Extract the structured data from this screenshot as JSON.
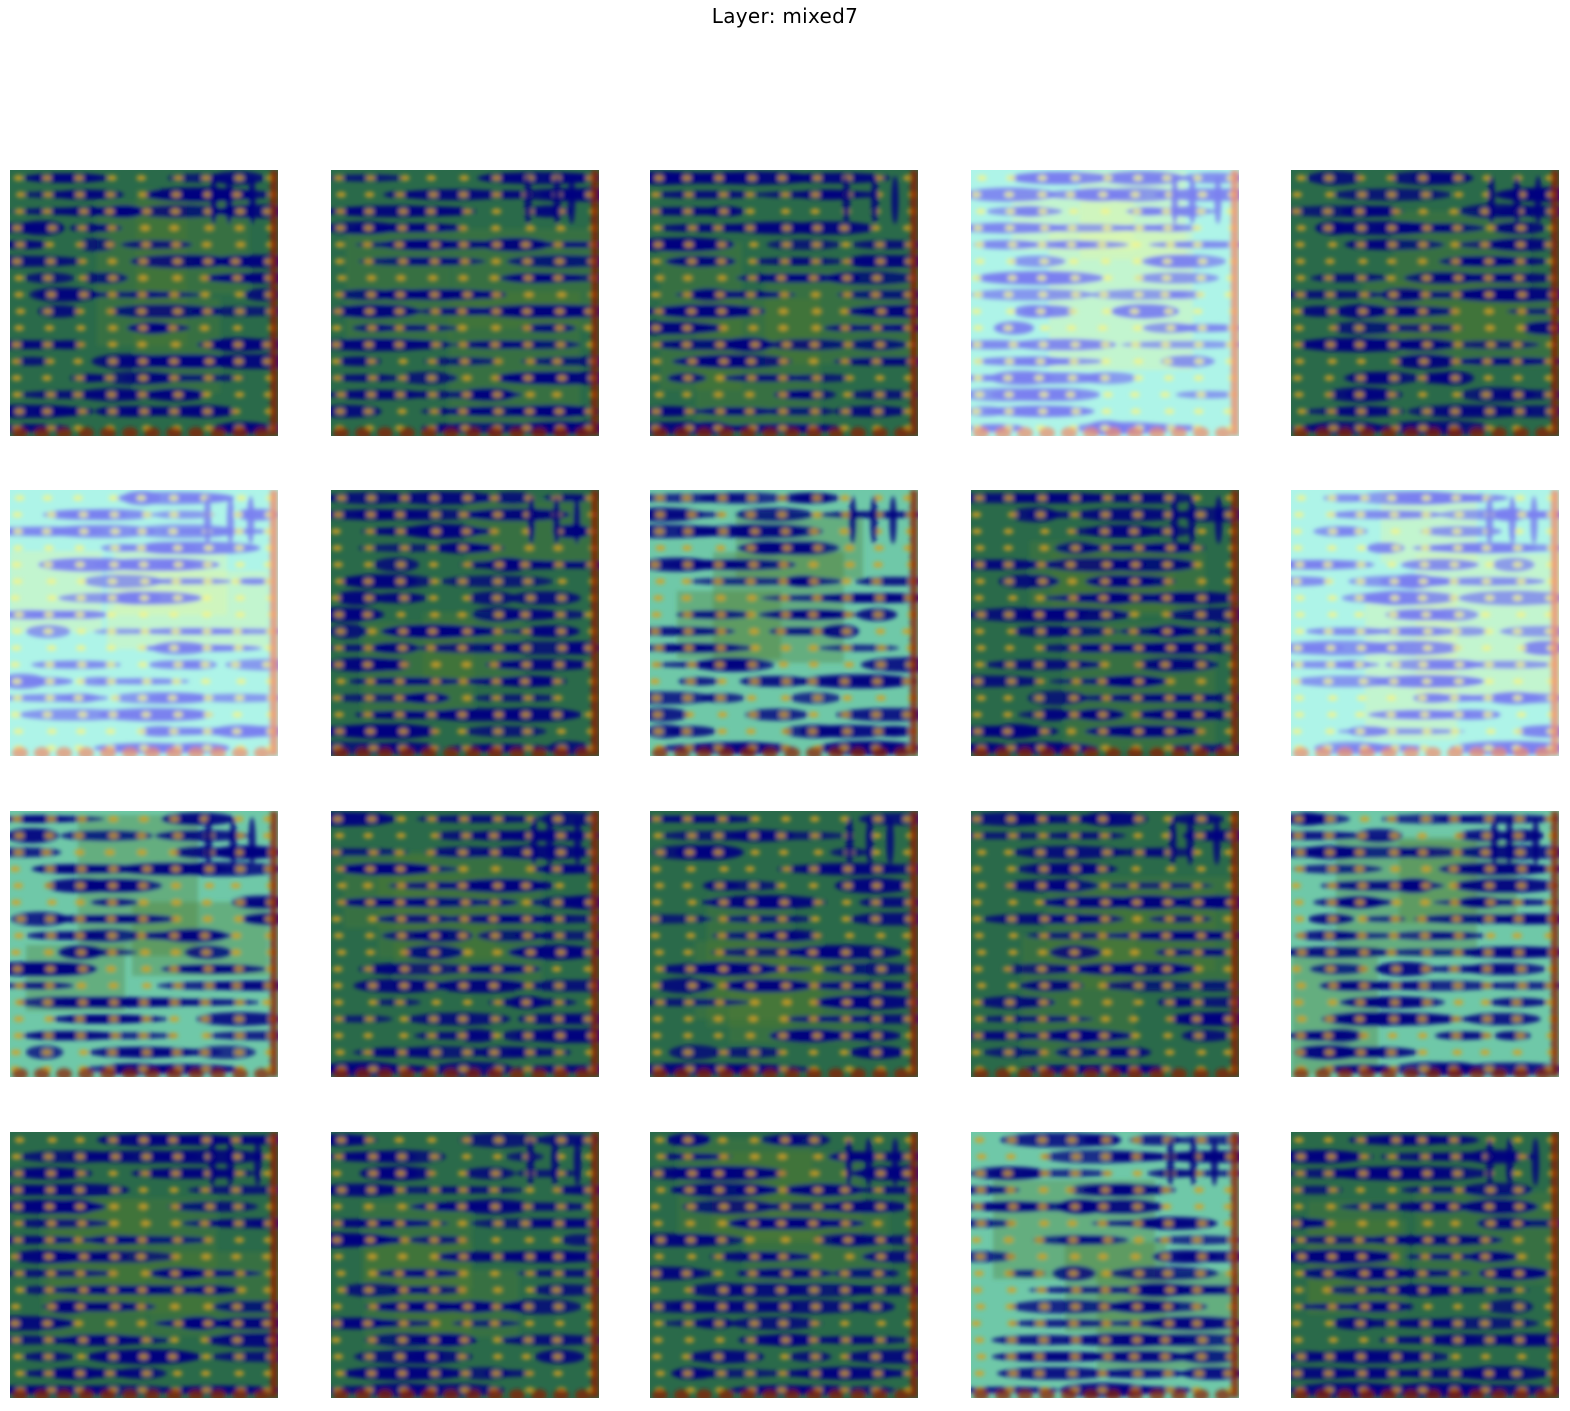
{
  "figure": {
    "title": "Layer: mixed7"
  },
  "grid": {
    "rows": 4,
    "columns": 5,
    "colormap": "jet",
    "panels": [
      {
        "row": 1,
        "col": 1,
        "tone": "dark"
      },
      {
        "row": 1,
        "col": 2,
        "tone": "dark"
      },
      {
        "row": 1,
        "col": 3,
        "tone": "dark"
      },
      {
        "row": 1,
        "col": 4,
        "tone": "light"
      },
      {
        "row": 1,
        "col": 5,
        "tone": "dark"
      },
      {
        "row": 2,
        "col": 1,
        "tone": "light"
      },
      {
        "row": 2,
        "col": 2,
        "tone": "dark"
      },
      {
        "row": 2,
        "col": 3,
        "tone": "medium"
      },
      {
        "row": 2,
        "col": 4,
        "tone": "dark"
      },
      {
        "row": 2,
        "col": 5,
        "tone": "light"
      },
      {
        "row": 3,
        "col": 1,
        "tone": "medium"
      },
      {
        "row": 3,
        "col": 2,
        "tone": "dark"
      },
      {
        "row": 3,
        "col": 3,
        "tone": "dark"
      },
      {
        "row": 3,
        "col": 4,
        "tone": "dark"
      },
      {
        "row": 3,
        "col": 5,
        "tone": "medium"
      },
      {
        "row": 4,
        "col": 1,
        "tone": "dark"
      },
      {
        "row": 4,
        "col": 2,
        "tone": "dark"
      },
      {
        "row": 4,
        "col": 3,
        "tone": "dark"
      },
      {
        "row": 4,
        "col": 4,
        "tone": "medium"
      },
      {
        "row": 4,
        "col": 5,
        "tone": "dark"
      }
    ]
  },
  "colors": {
    "dark_base": "#2a6a4a",
    "light_base": "#aef4e8",
    "medium_base": "#6fc8a8",
    "blob_dark": "#000080",
    "blob_light": "#7a7ff0",
    "node_warm": "#d8a020",
    "node_light": "#f4f48a",
    "edge_hot": "#8b1a00",
    "edge_light": "#f08a6a"
  }
}
